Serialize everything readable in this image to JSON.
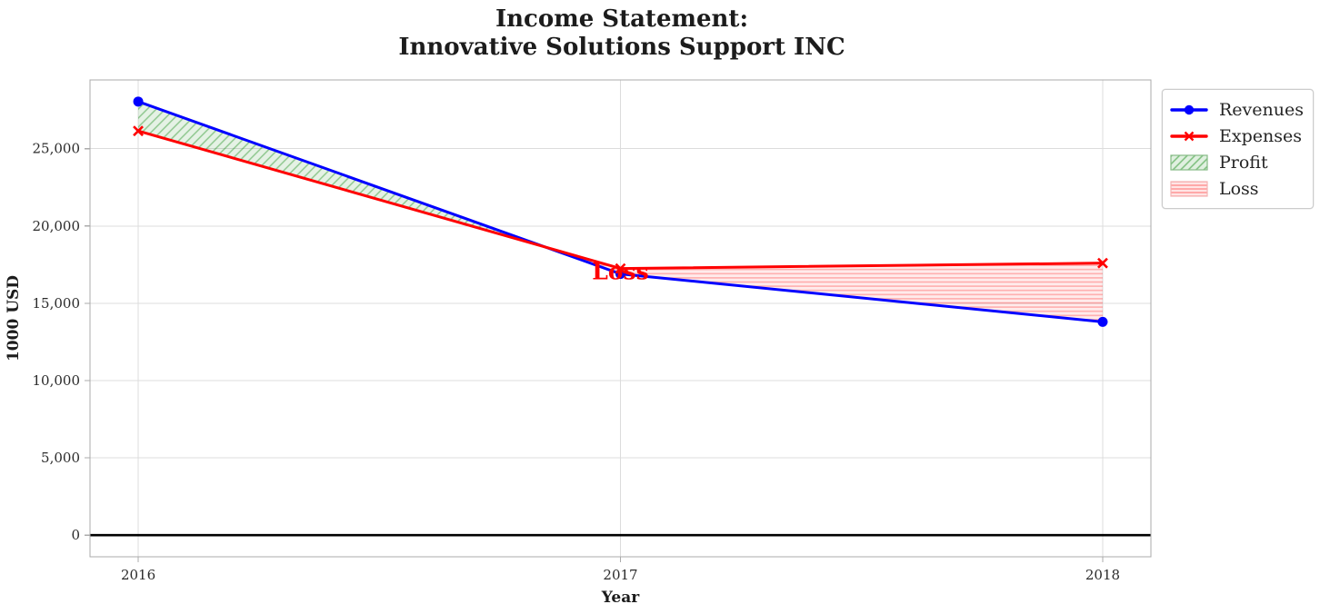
{
  "title": {
    "line1": "Income Statement:",
    "line2": "Innovative Solutions Support INC"
  },
  "chart_data": {
    "type": "line",
    "x": [
      2016,
      2017,
      2018
    ],
    "x_tick_labels": [
      "2016",
      "2017",
      "2018"
    ],
    "series": [
      {
        "name": "Revenues",
        "values": [
          28050,
          16900,
          13800
        ],
        "color": "#0000ff",
        "marker": "circle"
      },
      {
        "name": "Expenses",
        "values": [
          26150,
          17250,
          17600
        ],
        "color": "#ff0000",
        "marker": "x"
      }
    ],
    "fills": [
      {
        "name": "Profit",
        "condition": "revenues_above_expenses",
        "facecolor": "rgba(0,128,0,0.10)",
        "hatchcolor": "rgba(0,128,0,0.40)",
        "hatch": "diagonal"
      },
      {
        "name": "Loss",
        "condition": "expenses_above_revenues",
        "facecolor": "rgba(255,0,0,0.08)",
        "hatchcolor": "rgba(255,0,0,0.28)",
        "hatch": "horizontal"
      }
    ],
    "annotation": {
      "text": "Loss",
      "x": 2017,
      "y": 16500,
      "color": "#ff0000"
    },
    "xlabel": "Year",
    "ylabel": "1000 USD",
    "xlim": [
      2015.9,
      2018.1
    ],
    "ylim": [
      -1400,
      29450
    ],
    "yticks": [
      0,
      5000,
      10000,
      15000,
      20000,
      25000
    ],
    "ytick_labels": [
      "0",
      "5,000",
      "10,000",
      "15,000",
      "20,000",
      "25,000"
    ],
    "grid": true,
    "zero_line": true,
    "legend": {
      "position": "outside-top-right",
      "items": [
        {
          "label": "Revenues",
          "kind": "line-circle",
          "color": "#0000ff"
        },
        {
          "label": "Expenses",
          "kind": "line-x",
          "color": "#ff0000"
        },
        {
          "label": "Profit",
          "kind": "patch-diagonal-hatch",
          "facecolor": "rgba(0,128,0,0.12)",
          "hatchcolor": "rgba(0,128,0,0.45)",
          "edgecolor": "#86bb86"
        },
        {
          "label": "Loss",
          "kind": "patch-horizontal-hatch",
          "facecolor": "rgba(255,0,0,0.10)",
          "hatchcolor": "rgba(255,0,0,0.35)",
          "edgecolor": "#f2b3b3"
        }
      ]
    },
    "axis_colors": {
      "spine": "#ababab",
      "grid": "#dcdcdc",
      "tick_label": "#2b2b2b",
      "zero_line": "#000000"
    }
  }
}
